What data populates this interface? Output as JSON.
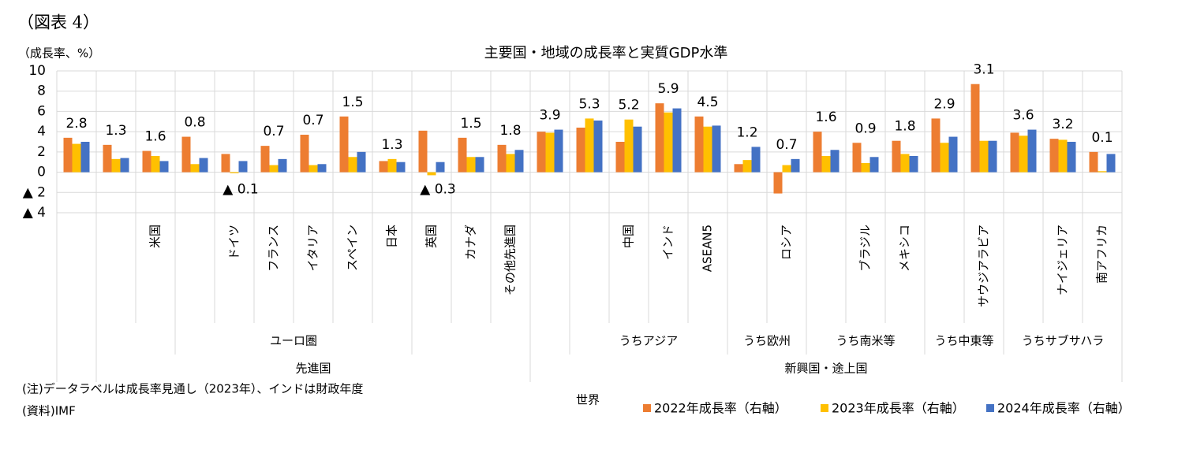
{
  "figure_label": "（図表 4）",
  "chart_data": {
    "type": "bar",
    "title": "主要国・地域の成長率と実質GDP水準",
    "y_label": "（成長率、%）",
    "categories": [
      null,
      null,
      "米国",
      null,
      "ドイツ",
      "フランス",
      "イタリア",
      "スペイン",
      "日本",
      "英国",
      "カナダ",
      "その他先進国",
      null,
      null,
      "中国",
      "インド",
      "ASEAN5",
      null,
      "ロシア",
      null,
      "ブラジル",
      "メキシコ",
      null,
      "サウジアラビア",
      null,
      "ナイジェリア",
      "南アフリカ"
    ],
    "category_groups": [
      "ユーロ圏",
      "うちアジア",
      "うち欧州",
      "うち南米等",
      "うち中東等",
      "うちサブサハラ"
    ],
    "category_supergroups": [
      "先進国",
      "新興国・途上国"
    ],
    "world_label": "世界",
    "series": [
      {
        "name": "2022年成長率（右軸）",
        "color": "#ed7d31",
        "values": [
          3.4,
          2.7,
          2.1,
          3.5,
          1.8,
          2.6,
          3.7,
          5.5,
          1.1,
          4.1,
          3.4,
          2.7,
          4.0,
          4.4,
          3.0,
          6.8,
          5.5,
          0.8,
          -2.1,
          4.0,
          2.9,
          3.1,
          5.3,
          8.7,
          3.9,
          3.3,
          2.0
        ]
      },
      {
        "name": "2023年成長率（右軸）",
        "color": "#ffc000",
        "values": [
          2.8,
          1.3,
          1.6,
          0.8,
          -0.1,
          0.7,
          0.7,
          1.5,
          1.3,
          -0.3,
          1.5,
          1.8,
          3.9,
          5.3,
          5.2,
          5.9,
          4.5,
          1.2,
          0.7,
          1.6,
          0.9,
          1.8,
          2.9,
          3.1,
          3.6,
          3.2,
          0.1
        ],
        "value_labels": [
          "2.8",
          "1.3",
          "1.6",
          "0.8",
          "▲ 0.1",
          "0.7",
          "0.7",
          "1.5",
          "1.3",
          "▲ 0.3",
          "1.5",
          "1.8",
          "3.9",
          "5.3",
          "5.2",
          "5.9",
          "4.5",
          "1.2",
          "0.7",
          "1.6",
          "0.9",
          "1.8",
          "2.9",
          "3.1",
          "3.6",
          "3.2",
          "0.1"
        ]
      },
      {
        "name": "2024年成長率（右軸）",
        "color": "#4472c4",
        "values": [
          3.0,
          1.4,
          1.1,
          1.4,
          1.1,
          1.3,
          0.8,
          2.0,
          1.0,
          1.0,
          1.5,
          2.2,
          4.2,
          5.1,
          4.5,
          6.3,
          4.6,
          2.5,
          1.3,
          2.2,
          1.5,
          1.6,
          3.5,
          3.1,
          4.2,
          3.0,
          1.8
        ]
      }
    ],
    "ylim": [
      -4,
      10
    ],
    "yticks": [
      {
        "value": -4,
        "label": "▲ 4"
      },
      {
        "value": -2,
        "label": "▲ 2"
      },
      0,
      2,
      4,
      6,
      8,
      10
    ],
    "grid": true,
    "notes": [
      "(注)データラベルは成長率見通し（2023年）、インドは財政年度",
      "(資料)IMF"
    ]
  }
}
